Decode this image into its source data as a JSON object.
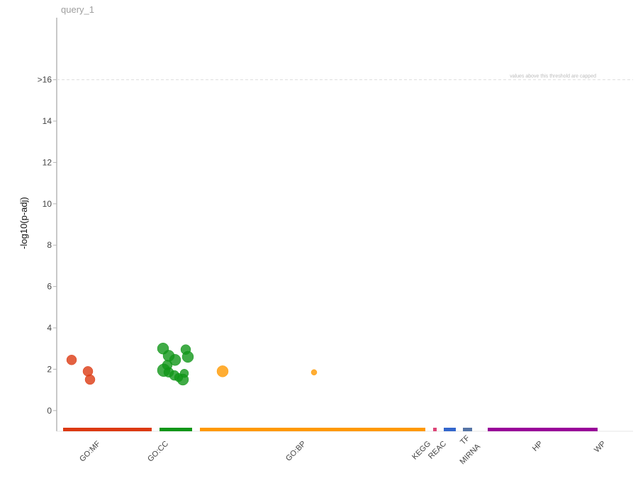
{
  "chart_data": {
    "type": "scatter",
    "title": "query_1",
    "ylabel": "-log10(p-adj)",
    "ylim": [
      -1,
      19
    ],
    "y_ticks": [
      {
        "value": 0,
        "label": "0"
      },
      {
        "value": 2,
        "label": "2"
      },
      {
        "value": 4,
        "label": "4"
      },
      {
        "value": 6,
        "label": "6"
      },
      {
        "value": 8,
        "label": "8"
      },
      {
        "value": 10,
        "label": "10"
      },
      {
        "value": 12,
        "label": "12"
      },
      {
        "value": 14,
        "label": "14"
      },
      {
        "value": 16,
        "label": ">16"
      }
    ],
    "threshold": {
      "value": 16,
      "note": "values above this threshold are capped"
    },
    "sources": [
      {
        "name": "GO:MF",
        "color": "#dc3912"
      },
      {
        "name": "GO:CC",
        "color": "#109618"
      },
      {
        "name": "GO:BP",
        "color": "#ff9900"
      },
      {
        "name": "KEGG",
        "color": "#dd4477"
      },
      {
        "name": "REAC",
        "color": "#3366cc"
      },
      {
        "name": "TF",
        "color": "#5574a6"
      },
      {
        "name": "MIRNA",
        "color": "#22aa99"
      },
      {
        "name": "HP",
        "color": "#990099"
      },
      {
        "name": "WP",
        "color": "#0099c6"
      }
    ],
    "points": [
      {
        "source": "GO:MF",
        "y": 2.45,
        "size": 7
      },
      {
        "source": "GO:MF",
        "y": 1.9,
        "size": 7
      },
      {
        "source": "GO:MF",
        "y": 1.5,
        "size": 7
      },
      {
        "source": "GO:CC",
        "y": 3.0,
        "size": 8
      },
      {
        "source": "GO:CC",
        "y": 2.65,
        "size": 8
      },
      {
        "source": "GO:CC",
        "y": 2.45,
        "size": 8
      },
      {
        "source": "GO:CC",
        "y": 2.2,
        "size": 7
      },
      {
        "source": "GO:CC",
        "y": 1.95,
        "size": 9
      },
      {
        "source": "GO:CC",
        "y": 1.85,
        "size": 7
      },
      {
        "source": "GO:CC",
        "y": 1.7,
        "size": 7
      },
      {
        "source": "GO:CC",
        "y": 1.6,
        "size": 6
      },
      {
        "source": "GO:CC",
        "y": 1.8,
        "size": 6
      },
      {
        "source": "GO:CC",
        "y": 1.5,
        "size": 8
      },
      {
        "source": "GO:CC",
        "y": 2.95,
        "size": 7
      },
      {
        "source": "GO:CC",
        "y": 2.6,
        "size": 8
      },
      {
        "source": "GO:BP",
        "y": 1.9,
        "size": 8
      },
      {
        "source": "GO:BP",
        "y": 1.85,
        "size": 4
      }
    ]
  }
}
